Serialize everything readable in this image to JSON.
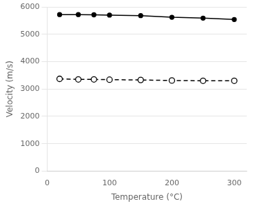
{
  "chart_data": {
    "type": "line",
    "x_label": "Temperature (°C)",
    "y_label": "Velocity (m/s)",
    "x": [
      20,
      50,
      75,
      100,
      150,
      200,
      250,
      300
    ],
    "series": [
      {
        "color": "#000000",
        "line_style": "solid",
        "marker": "filled_circle",
        "values": [
          5720,
          5720,
          5710,
          5700,
          5680,
          5620,
          5590,
          5540
        ]
      },
      {
        "color": "#000000",
        "line_style": "dashed",
        "marker": "open_circle",
        "values": [
          3370,
          3350,
          3350,
          3340,
          3330,
          3310,
          3300,
          3300
        ]
      }
    ],
    "xlim": [
      0,
      320
    ],
    "ylim": [
      0,
      6000
    ],
    "xticks": [
      0,
      100,
      200,
      300
    ],
    "yticks": [
      0,
      1000,
      2000,
      3000,
      4000,
      5000,
      6000
    ],
    "grid": "y"
  }
}
